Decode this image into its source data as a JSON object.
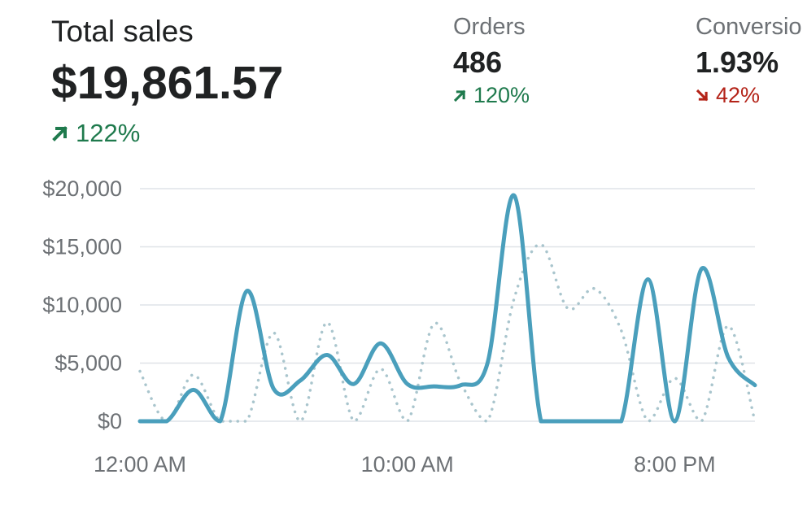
{
  "total_sales": {
    "title": "Total sales",
    "value": "$19,861.57",
    "change": "122%",
    "direction": "up",
    "icon": "arrow-up-right-icon"
  },
  "orders": {
    "title": "Orders",
    "value": "486",
    "change": "120%",
    "direction": "up",
    "icon": "arrow-up-right-icon"
  },
  "conversion": {
    "title": "Conversio",
    "value": "1.93%",
    "change": "42%",
    "direction": "down",
    "icon": "arrow-down-right-icon"
  },
  "colors": {
    "primary_series": "#4a9fbc",
    "comparison_series": "#a9c5cd",
    "gridline": "#dfe3e8",
    "positive": "#1f7a4d",
    "negative": "#b42318"
  },
  "chart_data": {
    "type": "line",
    "title": "",
    "xlabel": "",
    "ylabel": "",
    "ylim": [
      0,
      20000
    ],
    "y_ticks": [
      {
        "value": 0,
        "label": "$0"
      },
      {
        "value": 5000,
        "label": "$5,000"
      },
      {
        "value": 10000,
        "label": "$10,000"
      },
      {
        "value": 15000,
        "label": "$15,000"
      },
      {
        "value": 20000,
        "label": "$20,000"
      }
    ],
    "x_tick_labels": [
      {
        "hour": 0,
        "label": "12:00 AM"
      },
      {
        "hour": 10,
        "label": "10:00 AM"
      },
      {
        "hour": 20,
        "label": "8:00 PM"
      }
    ],
    "grid": true,
    "legend": "none",
    "x": [
      0,
      1,
      2,
      3,
      4,
      5,
      6,
      7,
      8,
      9,
      10,
      11,
      12,
      13,
      14,
      15,
      16,
      17,
      18,
      19,
      20,
      21,
      22,
      23
    ],
    "series": [
      {
        "style": "solid",
        "values": [
          0,
          0,
          2700,
          0,
          11200,
          2800,
          3500,
          5700,
          3200,
          6700,
          3200,
          3000,
          3100,
          5000,
          19400,
          0,
          0,
          0,
          0,
          12200,
          0,
          13100,
          5500,
          3100
        ]
      },
      {
        "style": "dotted",
        "values": [
          4300,
          0,
          4000,
          0,
          0,
          7600,
          0,
          8500,
          0,
          4500,
          0,
          8400,
          3300,
          0,
          10600,
          15200,
          9700,
          11400,
          7800,
          0,
          3700,
          0,
          8200,
          0
        ]
      }
    ]
  }
}
